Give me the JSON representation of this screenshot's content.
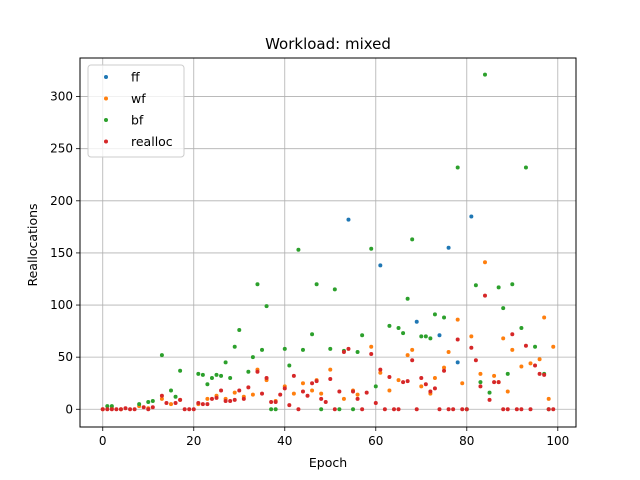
{
  "chart_data": {
    "type": "scatter",
    "title": "Workload: mixed",
    "xlabel": "Epoch",
    "ylabel": "Reallocations",
    "xlim": [
      -5,
      104
    ],
    "ylim": [
      -17,
      337
    ],
    "xticks": [
      0,
      20,
      40,
      60,
      80,
      100
    ],
    "yticks": [
      0,
      50,
      100,
      150,
      200,
      250,
      300
    ],
    "grid": true,
    "legend": "top-left",
    "series": [
      {
        "name": "ff",
        "color": "#1f77b4",
        "points": [
          [
            54,
            182
          ],
          [
            61,
            138
          ],
          [
            69,
            84
          ],
          [
            74,
            71
          ],
          [
            76,
            155
          ],
          [
            78,
            45
          ],
          [
            81,
            185
          ]
        ]
      },
      {
        "name": "wf",
        "color": "#ff7f0e",
        "points": [
          [
            0,
            0
          ],
          [
            2,
            1
          ],
          [
            4,
            0
          ],
          [
            8,
            3
          ],
          [
            10,
            1
          ],
          [
            13,
            10
          ],
          [
            15,
            5
          ],
          [
            17,
            9
          ],
          [
            21,
            5
          ],
          [
            23,
            10
          ],
          [
            25,
            13
          ],
          [
            27,
            10
          ],
          [
            29,
            16
          ],
          [
            31,
            12
          ],
          [
            33,
            14
          ],
          [
            34,
            38
          ],
          [
            36,
            28
          ],
          [
            38,
            8
          ],
          [
            40,
            22
          ],
          [
            42,
            15
          ],
          [
            44,
            25
          ],
          [
            46,
            18
          ],
          [
            47,
            28
          ],
          [
            48,
            15
          ],
          [
            50,
            38
          ],
          [
            53,
            10
          ],
          [
            55,
            18
          ],
          [
            56,
            14
          ],
          [
            59,
            60
          ],
          [
            61,
            35
          ],
          [
            63,
            18
          ],
          [
            65,
            28
          ],
          [
            67,
            52
          ],
          [
            68,
            57
          ],
          [
            70,
            22
          ],
          [
            72,
            15
          ],
          [
            73,
            30
          ],
          [
            75,
            40
          ],
          [
            76,
            55
          ],
          [
            78,
            86
          ],
          [
            79,
            25
          ],
          [
            81,
            70
          ],
          [
            83,
            34
          ],
          [
            84,
            141
          ],
          [
            86,
            32
          ],
          [
            87,
            26
          ],
          [
            88,
            68
          ],
          [
            89,
            17
          ],
          [
            90,
            57
          ],
          [
            92,
            41
          ],
          [
            94,
            44
          ],
          [
            96,
            48
          ],
          [
            97,
            88
          ],
          [
            98,
            10
          ],
          [
            99,
            60
          ]
        ]
      },
      {
        "name": "bf",
        "color": "#2ca02c",
        "points": [
          [
            1,
            3
          ],
          [
            2,
            3
          ],
          [
            8,
            5
          ],
          [
            10,
            7
          ],
          [
            11,
            8
          ],
          [
            13,
            52
          ],
          [
            15,
            18
          ],
          [
            16,
            12
          ],
          [
            17,
            37
          ],
          [
            21,
            34
          ],
          [
            22,
            33
          ],
          [
            23,
            24
          ],
          [
            24,
            30
          ],
          [
            25,
            33
          ],
          [
            26,
            32
          ],
          [
            27,
            45
          ],
          [
            28,
            30
          ],
          [
            29,
            60
          ],
          [
            30,
            76
          ],
          [
            32,
            36
          ],
          [
            33,
            50
          ],
          [
            34,
            120
          ],
          [
            35,
            57
          ],
          [
            36,
            99
          ],
          [
            37,
            0
          ],
          [
            38,
            0
          ],
          [
            40,
            58
          ],
          [
            41,
            42
          ],
          [
            43,
            153
          ],
          [
            44,
            57
          ],
          [
            46,
            72
          ],
          [
            47,
            120
          ],
          [
            48,
            0
          ],
          [
            50,
            58
          ],
          [
            51,
            115
          ],
          [
            52,
            0
          ],
          [
            53,
            56
          ],
          [
            55,
            0
          ],
          [
            56,
            55
          ],
          [
            57,
            71
          ],
          [
            59,
            154
          ],
          [
            60,
            22
          ],
          [
            63,
            80
          ],
          [
            65,
            78
          ],
          [
            66,
            73
          ],
          [
            67,
            106
          ],
          [
            68,
            163
          ],
          [
            70,
            70
          ],
          [
            71,
            70
          ],
          [
            72,
            68
          ],
          [
            73,
            91
          ],
          [
            75,
            88
          ],
          [
            78,
            232
          ],
          [
            80,
            0
          ],
          [
            82,
            119
          ],
          [
            83,
            26
          ],
          [
            84,
            321
          ],
          [
            85,
            16
          ],
          [
            87,
            117
          ],
          [
            88,
            97
          ],
          [
            89,
            34
          ],
          [
            90,
            120
          ],
          [
            92,
            78
          ],
          [
            93,
            232
          ],
          [
            95,
            60
          ],
          [
            97,
            34
          ],
          [
            98,
            0
          ]
        ]
      },
      {
        "name": "realloc",
        "color": "#d62728",
        "points": [
          [
            0,
            0
          ],
          [
            1,
            0
          ],
          [
            2,
            0
          ],
          [
            3,
            0
          ],
          [
            4,
            0
          ],
          [
            5,
            1
          ],
          [
            6,
            0
          ],
          [
            7,
            0
          ],
          [
            9,
            2
          ],
          [
            10,
            0
          ],
          [
            11,
            2
          ],
          [
            13,
            13
          ],
          [
            14,
            6
          ],
          [
            16,
            6
          ],
          [
            17,
            9
          ],
          [
            18,
            0
          ],
          [
            19,
            0
          ],
          [
            20,
            0
          ],
          [
            21,
            6
          ],
          [
            22,
            5
          ],
          [
            23,
            5
          ],
          [
            24,
            10
          ],
          [
            25,
            11
          ],
          [
            26,
            18
          ],
          [
            27,
            8
          ],
          [
            28,
            8
          ],
          [
            29,
            9
          ],
          [
            30,
            18
          ],
          [
            31,
            10
          ],
          [
            32,
            21
          ],
          [
            34,
            36
          ],
          [
            35,
            15
          ],
          [
            36,
            30
          ],
          [
            37,
            7
          ],
          [
            38,
            7
          ],
          [
            39,
            14
          ],
          [
            40,
            20
          ],
          [
            41,
            4
          ],
          [
            42,
            32
          ],
          [
            43,
            0
          ],
          [
            44,
            17
          ],
          [
            45,
            13
          ],
          [
            46,
            25
          ],
          [
            47,
            27
          ],
          [
            48,
            10
          ],
          [
            49,
            7
          ],
          [
            50,
            29
          ],
          [
            51,
            0
          ],
          [
            52,
            17
          ],
          [
            53,
            55
          ],
          [
            54,
            58
          ],
          [
            55,
            17
          ],
          [
            56,
            10
          ],
          [
            57,
            0
          ],
          [
            58,
            16
          ],
          [
            59,
            53
          ],
          [
            60,
            6
          ],
          [
            61,
            38
          ],
          [
            62,
            0
          ],
          [
            63,
            31
          ],
          [
            64,
            0
          ],
          [
            65,
            0
          ],
          [
            66,
            26
          ],
          [
            67,
            27
          ],
          [
            68,
            47
          ],
          [
            69,
            0
          ],
          [
            70,
            30
          ],
          [
            71,
            24
          ],
          [
            72,
            17
          ],
          [
            73,
            20
          ],
          [
            74,
            0
          ],
          [
            75,
            37
          ],
          [
            76,
            0
          ],
          [
            77,
            0
          ],
          [
            78,
            67
          ],
          [
            79,
            0
          ],
          [
            80,
            0
          ],
          [
            81,
            59
          ],
          [
            82,
            47
          ],
          [
            83,
            22
          ],
          [
            84,
            109
          ],
          [
            85,
            9
          ],
          [
            86,
            26
          ],
          [
            87,
            26
          ],
          [
            88,
            0
          ],
          [
            89,
            0
          ],
          [
            90,
            72
          ],
          [
            91,
            0
          ],
          [
            92,
            0
          ],
          [
            93,
            61
          ],
          [
            94,
            0
          ],
          [
            95,
            42
          ],
          [
            96,
            34
          ],
          [
            97,
            33
          ],
          [
            98,
            0
          ],
          [
            99,
            0
          ]
        ]
      }
    ]
  }
}
